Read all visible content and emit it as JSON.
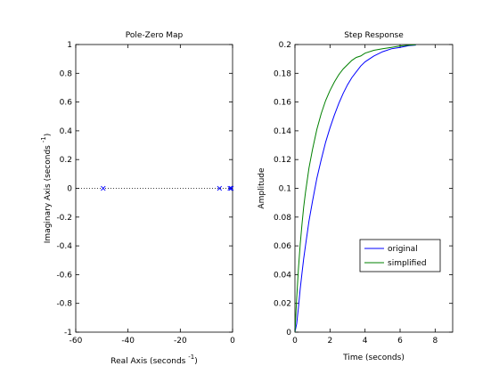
{
  "chart_data": [
    {
      "type": "scatter",
      "title": "Pole-Zero Map",
      "xlabel": "Real Axis (seconds",
      "xlabel_sup": "-1",
      "xlabel_close": ")",
      "ylabel": "Imaginary Axis (seconds",
      "ylabel_sup": "-1",
      "ylabel_close": ")",
      "xlim": [
        -60,
        0
      ],
      "ylim": [
        -1,
        1
      ],
      "xticks": [
        -60,
        -40,
        -20,
        0
      ],
      "xtick_labels": [
        "-60",
        "-40",
        "-20",
        "0"
      ],
      "yticks": [
        1,
        0.8,
        0.6,
        0.4,
        0.2,
        0,
        -0.2,
        -0.4,
        -0.6,
        -0.8,
        -1
      ],
      "ytick_labels": [
        "1",
        "0.8",
        "0.6",
        "0.4",
        "0.2",
        "0",
        "-0.2",
        "-0.4",
        "-0.6",
        "-0.8",
        "-1"
      ],
      "grid": false,
      "reference_line": {
        "y": 0,
        "style": "dotted"
      },
      "marker": "x",
      "marker_color": "#0000ff",
      "poles": [
        {
          "re": -49.5,
          "im": 0
        },
        {
          "re": -5,
          "im": 0
        },
        {
          "re": -1,
          "im": 0
        },
        {
          "re": -0.5,
          "im": 0
        }
      ]
    },
    {
      "type": "line",
      "title": "Step Response",
      "xlabel": "Time (seconds)",
      "ylabel": "Amplitude",
      "xlim": [
        0,
        9
      ],
      "ylim": [
        0,
        0.2
      ],
      "xticks": [
        0,
        2,
        4,
        6,
        8
      ],
      "xtick_labels": [
        "0",
        "2",
        "4",
        "6",
        "8"
      ],
      "yticks": [
        0.2,
        0.18,
        0.16,
        0.14,
        0.12,
        0.1,
        0.08,
        0.06,
        0.04,
        0.02,
        0
      ],
      "ytick_labels": [
        "0.2",
        "0.18",
        "0.16",
        "0.14",
        "0.12",
        "0.1",
        "0.08",
        "0.06",
        "0.04",
        "0.02",
        "0"
      ],
      "grid": false,
      "legend_position": "bottom-right",
      "series": [
        {
          "name": "original",
          "color": "#0000ff",
          "points": [
            [
              0,
              0
            ],
            [
              0.1,
              0.006
            ],
            [
              0.2,
              0.017
            ],
            [
              0.3,
              0.03
            ],
            [
              0.4,
              0.041
            ],
            [
              0.5,
              0.051
            ],
            [
              0.6,
              0.06
            ],
            [
              0.8,
              0.077
            ],
            [
              1,
              0.091
            ],
            [
              1.25,
              0.107
            ],
            [
              1.5,
              0.12
            ],
            [
              1.75,
              0.132
            ],
            [
              2,
              0.142
            ],
            [
              2.25,
              0.151
            ],
            [
              2.5,
              0.159
            ],
            [
              2.75,
              0.166
            ],
            [
              3,
              0.172
            ],
            [
              3.25,
              0.177
            ],
            [
              3.5,
              0.181
            ],
            [
              3.75,
              0.185
            ],
            [
              4,
              0.188
            ],
            [
              4.5,
              0.192
            ],
            [
              5,
              0.195
            ],
            [
              5.5,
              0.197
            ],
            [
              6,
              0.198
            ],
            [
              6.5,
              0.1992
            ],
            [
              6.9,
              0.1996
            ]
          ]
        },
        {
          "name": "simplified",
          "color": "#008000",
          "points": [
            [
              0,
              0
            ],
            [
              0.1,
              0.024
            ],
            [
              0.2,
              0.044
            ],
            [
              0.3,
              0.061
            ],
            [
              0.4,
              0.075
            ],
            [
              0.5,
              0.087
            ],
            [
              0.6,
              0.097
            ],
            [
              0.8,
              0.114
            ],
            [
              1,
              0.127
            ],
            [
              1.25,
              0.141
            ],
            [
              1.5,
              0.152
            ],
            [
              1.75,
              0.161
            ],
            [
              2,
              0.168
            ],
            [
              2.25,
              0.174
            ],
            [
              2.5,
              0.179
            ],
            [
              2.75,
              0.183
            ],
            [
              3,
              0.186
            ],
            [
              3.25,
              0.189
            ],
            [
              3.5,
              0.191
            ],
            [
              3.75,
              0.192
            ],
            [
              4,
              0.194
            ],
            [
              4.5,
              0.196
            ],
            [
              5,
              0.197
            ],
            [
              5.5,
              0.198
            ],
            [
              6,
              0.199
            ],
            [
              6.5,
              0.1995
            ],
            [
              6.9,
              0.1998
            ]
          ]
        }
      ]
    }
  ]
}
